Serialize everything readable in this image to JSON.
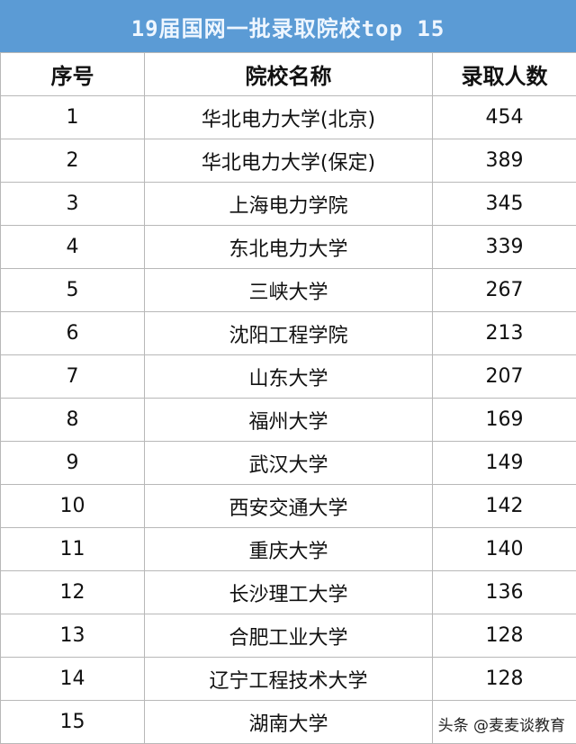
{
  "title": "19届国网一批录取院校top 15",
  "headers": [
    "序号",
    "院校名称",
    "录取人数"
  ],
  "rows": [
    [
      "1",
      "华北电力大学(北京)",
      "454"
    ],
    [
      "2",
      "华北电力大学(保定)",
      "389"
    ],
    [
      "3",
      "上海电力学院",
      "345"
    ],
    [
      "4",
      "东北电力大学",
      "339"
    ],
    [
      "5",
      "三峡大学",
      "267"
    ],
    [
      "6",
      "沈阳工程学院",
      "213"
    ],
    [
      "7",
      "山东大学",
      "207"
    ],
    [
      "8",
      "福州大学",
      "169"
    ],
    [
      "9",
      "武汉大学",
      "149"
    ],
    [
      "10",
      "西安交通大学",
      "142"
    ],
    [
      "11",
      "重庆大学",
      "140"
    ],
    [
      "12",
      "长沙理工大学",
      "136"
    ],
    [
      "13",
      "合肥工业大学",
      "128"
    ],
    [
      "14",
      "辽宁工程技术大学",
      "128"
    ],
    [
      "15",
      "湖南大学",
      ""
    ]
  ],
  "watermark": "头条 @麦麦谈教育",
  "colors": {
    "title_bg": "#5b9bd5",
    "title_text": "#eef6ff",
    "border": "#b8b8b8"
  }
}
